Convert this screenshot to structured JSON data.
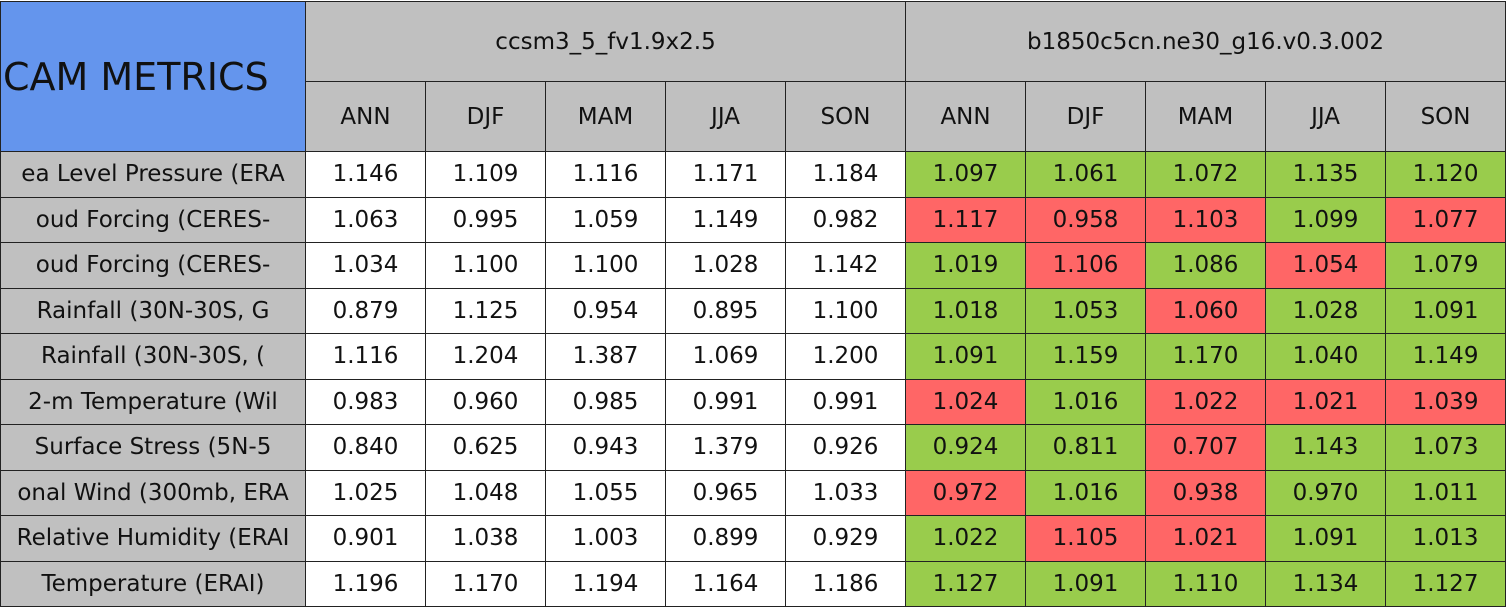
{
  "title": "CAM METRICS",
  "cases": [
    {
      "name": "ccsm3_5_fv1.9x2.5",
      "seasons": [
        "ANN",
        "DJF",
        "MAM",
        "JJA",
        "SON"
      ]
    },
    {
      "name": "b1850c5cn.ne30_g16.v0.3.002",
      "seasons": [
        "ANN",
        "DJF",
        "MAM",
        "JJA",
        "SON"
      ]
    }
  ],
  "colors": {
    "header": "#c0c0c0",
    "title": "#6495ed",
    "good": "#99cc4c",
    "bad": "#ff6666",
    "plain": "#ffffff"
  },
  "rows": [
    {
      "label": "ea Level Pressure (ERA",
      "case1": [
        "1.146",
        "1.109",
        "1.116",
        "1.171",
        "1.184"
      ],
      "case2": [
        "1.097",
        "1.061",
        "1.072",
        "1.135",
        "1.120"
      ],
      "case2_status": [
        "good",
        "good",
        "good",
        "good",
        "good"
      ]
    },
    {
      "label": "oud Forcing (CERES-",
      "case1": [
        "1.063",
        "0.995",
        "1.059",
        "1.149",
        "0.982"
      ],
      "case2": [
        "1.117",
        "0.958",
        "1.103",
        "1.099",
        "1.077"
      ],
      "case2_status": [
        "bad",
        "bad",
        "bad",
        "good",
        "bad"
      ]
    },
    {
      "label": "oud Forcing (CERES-",
      "case1": [
        "1.034",
        "1.100",
        "1.100",
        "1.028",
        "1.142"
      ],
      "case2": [
        "1.019",
        "1.106",
        "1.086",
        "1.054",
        "1.079"
      ],
      "case2_status": [
        "good",
        "bad",
        "good",
        "bad",
        "good"
      ]
    },
    {
      "label": "Rainfall (30N-30S, G",
      "case1": [
        "0.879",
        "1.125",
        "0.954",
        "0.895",
        "1.100"
      ],
      "case2": [
        "1.018",
        "1.053",
        "1.060",
        "1.028",
        "1.091"
      ],
      "case2_status": [
        "good",
        "good",
        "bad",
        "good",
        "good"
      ]
    },
    {
      "label": "Rainfall (30N-30S, (",
      "case1": [
        "1.116",
        "1.204",
        "1.387",
        "1.069",
        "1.200"
      ],
      "case2": [
        "1.091",
        "1.159",
        "1.170",
        "1.040",
        "1.149"
      ],
      "case2_status": [
        "good",
        "good",
        "good",
        "good",
        "good"
      ]
    },
    {
      "label": "2-m Temperature (Wil",
      "case1": [
        "0.983",
        "0.960",
        "0.985",
        "0.991",
        "0.991"
      ],
      "case2": [
        "1.024",
        "1.016",
        "1.022",
        "1.021",
        "1.039"
      ],
      "case2_status": [
        "bad",
        "good",
        "bad",
        "bad",
        "bad"
      ]
    },
    {
      "label": "Surface Stress (5N-5",
      "case1": [
        "0.840",
        "0.625",
        "0.943",
        "1.379",
        "0.926"
      ],
      "case2": [
        "0.924",
        "0.811",
        "0.707",
        "1.143",
        "1.073"
      ],
      "case2_status": [
        "good",
        "good",
        "bad",
        "good",
        "good"
      ]
    },
    {
      "label": "onal Wind (300mb, ERA",
      "case1": [
        "1.025",
        "1.048",
        "1.055",
        "0.965",
        "1.033"
      ],
      "case2": [
        "0.972",
        "1.016",
        "0.938",
        "0.970",
        "1.011"
      ],
      "case2_status": [
        "bad",
        "good",
        "bad",
        "good",
        "good"
      ]
    },
    {
      "label": "Relative Humidity (ERAI",
      "case1": [
        "0.901",
        "1.038",
        "1.003",
        "0.899",
        "0.929"
      ],
      "case2": [
        "1.022",
        "1.105",
        "1.021",
        "1.091",
        "1.013"
      ],
      "case2_status": [
        "good",
        "bad",
        "bad",
        "good",
        "good"
      ]
    },
    {
      "label": "Temperature (ERAI)",
      "case1": [
        "1.196",
        "1.170",
        "1.194",
        "1.164",
        "1.186"
      ],
      "case2": [
        "1.127",
        "1.091",
        "1.110",
        "1.134",
        "1.127"
      ],
      "case2_status": [
        "good",
        "good",
        "good",
        "good",
        "good"
      ]
    }
  ]
}
